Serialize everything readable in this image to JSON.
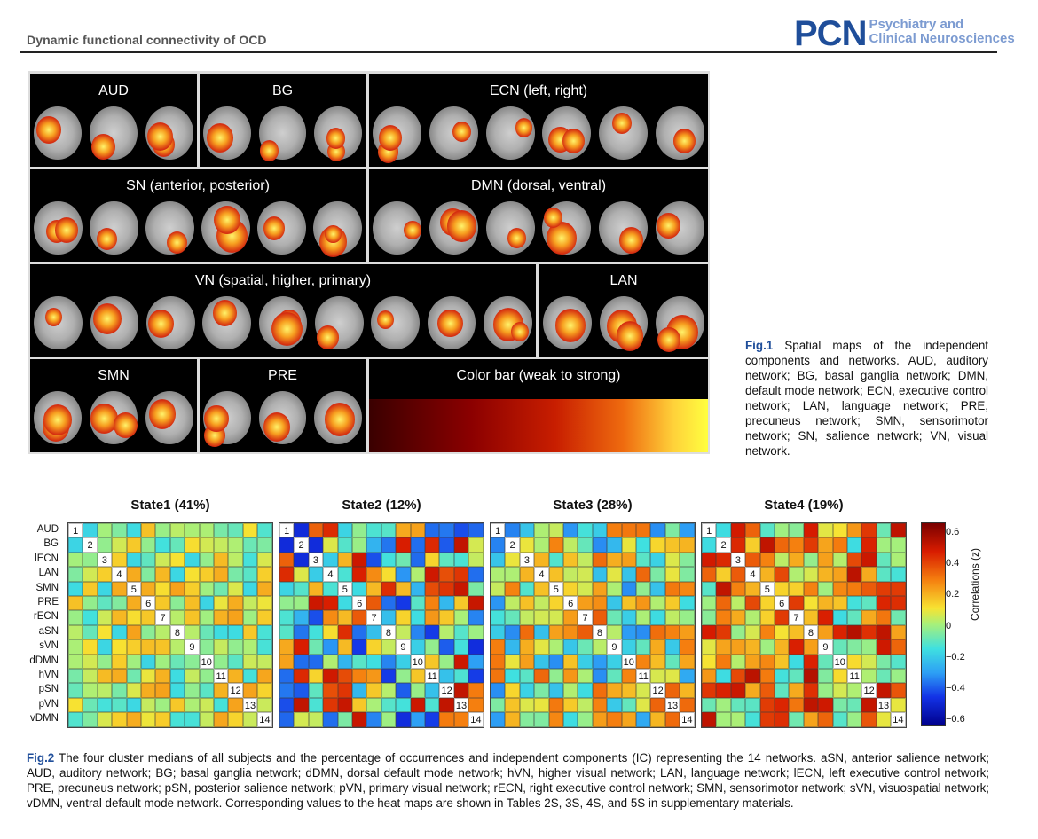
{
  "header": {
    "running_title": "Dynamic functional connectivity of OCD",
    "logo_acronym": "PCN",
    "logo_line1": "Psychiatry and",
    "logo_line2": "Clinical Neurosciences"
  },
  "fig1": {
    "panels": [
      "AUD",
      "BG",
      "ECN (left, right)",
      "SN (anterior, posterior)",
      "DMN (dorsal, ventral)",
      "VN (spatial, higher, primary)",
      "LAN",
      "SMN",
      "PRE",
      "Color bar (weak to strong)"
    ],
    "caption_label": "Fig.1",
    "caption_text": " Spatial maps of the independent components and networks. AUD, auditory network; BG, basal ganglia network; DMN, default mode network; ECN, executive control network; LAN, language network; PRE, precuneus network; SMN, sensorimotor network; SN, salience network; VN, visual network."
  },
  "chart_data": {
    "type": "heatmap",
    "networks": [
      "AUD",
      "BG",
      "lECN",
      "LAN",
      "SMN",
      "PRE",
      "rECN",
      "aSN",
      "sVN",
      "dDMN",
      "hVN",
      "pSN",
      "pVN",
      "vDMN"
    ],
    "states": [
      {
        "title": "State1 (41%)",
        "seed": 11,
        "scale": 0.22,
        "bias": 0.02
      },
      {
        "title": "State2 (12%)",
        "seed": 29,
        "scale": 0.55,
        "bias": 0.02
      },
      {
        "title": "State3 (28%)",
        "seed": 47,
        "scale": 0.38,
        "bias": 0.0
      },
      {
        "title": "State4 (19%)",
        "seed": 83,
        "scale": 0.38,
        "bias": 0.2
      }
    ],
    "colorbar": {
      "label": "Correlations (z)",
      "ticks": [
        "0.6",
        "0.4",
        "0.2",
        "0",
        "−0.2",
        "−0.4",
        "−0.6"
      ],
      "range": [
        -0.7,
        0.7
      ]
    }
  },
  "fig2": {
    "caption_label": "Fig.2",
    "caption_text": " The four cluster medians of all subjects and the percentage of occurrences and independent components (IC) representing the 14 networks. aSN, anterior salience network; AUD, auditory network; BG; basal ganglia network; dDMN, dorsal default mode network; hVN, higher visual network; LAN, language network; lECN, left executive control network; PRE, precuneus network; pSN, posterior salience network; pVN, primary visual network; rECN, right executive control network; SMN, sensorimotor network; sVN, visuospatial network; vDMN, ventral default mode network. Corresponding values to the heat maps are shown in Tables 2S, 3S, 4S, and 5S in supplementary materials."
  }
}
